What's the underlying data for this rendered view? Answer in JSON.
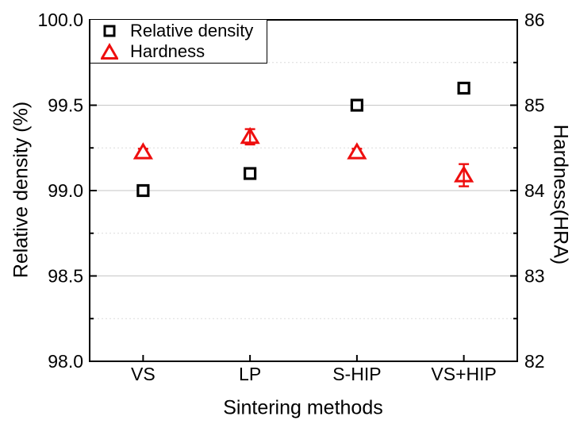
{
  "figure": {
    "background": "#ffffff",
    "axis_color": "#000000",
    "grid_major_color": "#c6c6c6",
    "grid_minor_color": "#dcdcdc"
  },
  "chart_data": {
    "type": "scatter",
    "categories": [
      "VS",
      "LP",
      "S-HIP",
      "VS+HIP"
    ],
    "xlabel": "Sintering methods",
    "left_axis": {
      "label": "Relative density (%)",
      "min": 98.0,
      "max": 100.0,
      "major_step": 0.5,
      "minor_step": 0.25,
      "tick_labels": [
        "100.0",
        "99.5",
        "99.0",
        "98.5",
        "98.0"
      ]
    },
    "right_axis": {
      "label": "Hardness(HRA)",
      "min": 82,
      "max": 86,
      "major_step": 1,
      "minor_step": 0.5,
      "tick_labels": [
        "86",
        "85",
        "84",
        "83",
        "82"
      ]
    },
    "grid": {
      "major": "solid",
      "minor": "dotted"
    },
    "legend": {
      "position": "top-left"
    },
    "series": [
      {
        "name": "Relative density",
        "axis": "left",
        "marker": "square",
        "color": "#000000",
        "values": [
          99.0,
          99.1,
          99.5,
          99.6
        ],
        "errors": [
          0,
          0,
          0,
          0
        ]
      },
      {
        "name": "Hardness",
        "axis": "right",
        "marker": "triangle",
        "color": "#ee0e0e",
        "values": [
          84.45,
          84.63,
          84.45,
          84.18
        ],
        "errors": [
          0.04,
          0.09,
          0.04,
          0.13
        ]
      }
    ]
  }
}
